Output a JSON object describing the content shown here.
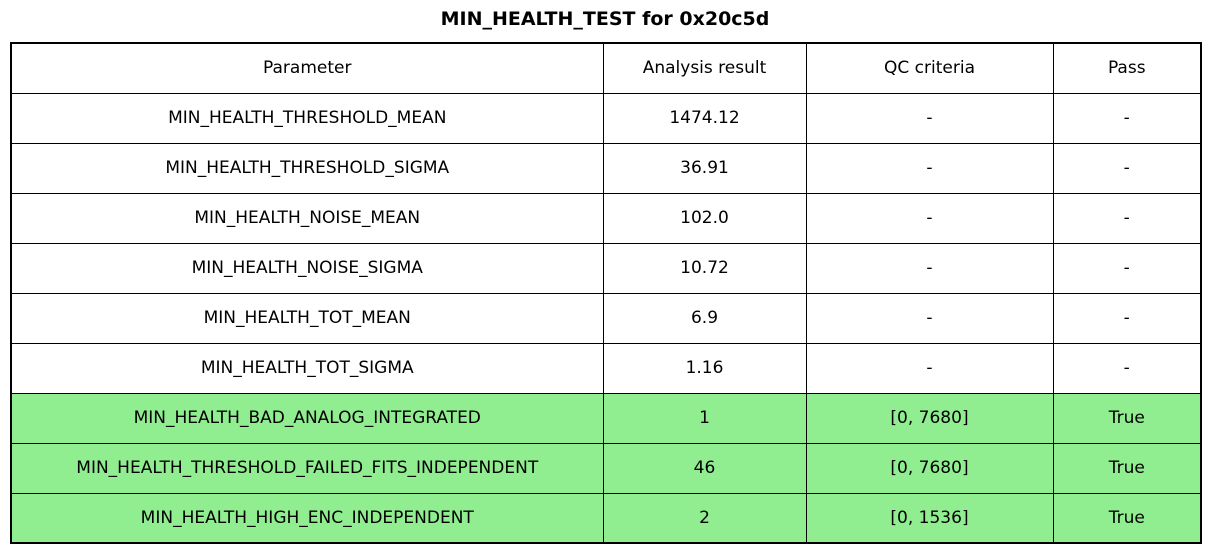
{
  "title": "MIN_HEALTH_TEST for 0x20c5d",
  "colors": {
    "pass_row_bg": "#90EE90",
    "border": "#000000",
    "page_bg": "#FFFFFF",
    "text": "#000000"
  },
  "chart_data": {
    "type": "table",
    "title": "MIN_HEALTH_TEST for 0x20c5d",
    "columns": [
      "Parameter",
      "Analysis result",
      "QC criteria",
      "Pass"
    ],
    "rows": [
      {
        "parameter": "MIN_HEALTH_THRESHOLD_MEAN",
        "analysis_result": "1474.12",
        "qc_criteria": "-",
        "pass": "-",
        "row_color": "white"
      },
      {
        "parameter": "MIN_HEALTH_THRESHOLD_SIGMA",
        "analysis_result": "36.91",
        "qc_criteria": "-",
        "pass": "-",
        "row_color": "white"
      },
      {
        "parameter": "MIN_HEALTH_NOISE_MEAN",
        "analysis_result": "102.0",
        "qc_criteria": "-",
        "pass": "-",
        "row_color": "white"
      },
      {
        "parameter": "MIN_HEALTH_NOISE_SIGMA",
        "analysis_result": "10.72",
        "qc_criteria": "-",
        "pass": "-",
        "row_color": "white"
      },
      {
        "parameter": "MIN_HEALTH_TOT_MEAN",
        "analysis_result": "6.9",
        "qc_criteria": "-",
        "pass": "-",
        "row_color": "white"
      },
      {
        "parameter": "MIN_HEALTH_TOT_SIGMA",
        "analysis_result": "1.16",
        "qc_criteria": "-",
        "pass": "-",
        "row_color": "white"
      },
      {
        "parameter": "MIN_HEALTH_BAD_ANALOG_INTEGRATED",
        "analysis_result": "1",
        "qc_criteria": "[0, 7680]",
        "pass": "True",
        "row_color": "lightgreen"
      },
      {
        "parameter": "MIN_HEALTH_THRESHOLD_FAILED_FITS_INDEPENDENT",
        "analysis_result": "46",
        "qc_criteria": "[0, 7680]",
        "pass": "True",
        "row_color": "lightgreen"
      },
      {
        "parameter": "MIN_HEALTH_HIGH_ENC_INDEPENDENT",
        "analysis_result": "2",
        "qc_criteria": "[0, 1536]",
        "pass": "True",
        "row_color": "lightgreen"
      }
    ]
  }
}
